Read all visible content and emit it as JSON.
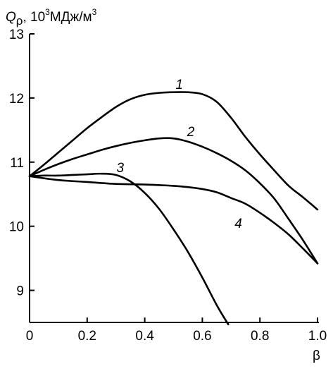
{
  "chart_data": {
    "type": "line",
    "ylabel_main": "Q",
    "ylabel_sub": "ρ",
    "ylabel_rest": ", 10",
    "ylabel_exp": "3",
    "ylabel_unit": "МДж/м",
    "ylabel_unit_exp": "3",
    "xlabel": "β",
    "xlim": [
      0,
      1.0
    ],
    "ylim": [
      8.5,
      13
    ],
    "x_ticks": [
      "0",
      "0.2",
      "0.4",
      "0.6",
      "0.8",
      "1.0"
    ],
    "x_tick_values": [
      0,
      0.2,
      0.4,
      0.6,
      0.8,
      1.0
    ],
    "y_ticks": [
      "9",
      "10",
      "11",
      "12",
      "13"
    ],
    "y_tick_values": [
      9,
      10,
      11,
      12,
      13
    ],
    "series": [
      {
        "name": "1",
        "label_at": [
          0.52,
          12.22
        ],
        "x": [
          0,
          0.05,
          0.1,
          0.15,
          0.2,
          0.25,
          0.3,
          0.35,
          0.4,
          0.45,
          0.5,
          0.55,
          0.6,
          0.65,
          0.7,
          0.75,
          0.8,
          0.85,
          0.9,
          0.95,
          1.0
        ],
        "y": [
          10.78,
          10.96,
          11.15,
          11.34,
          11.53,
          11.7,
          11.86,
          11.98,
          12.05,
          12.08,
          12.09,
          12.09,
          12.06,
          11.94,
          11.69,
          11.39,
          11.12,
          10.87,
          10.63,
          10.45,
          10.26
        ]
      },
      {
        "name": "2",
        "label_at": [
          0.56,
          11.48
        ],
        "x": [
          0,
          0.05,
          0.1,
          0.15,
          0.2,
          0.25,
          0.3,
          0.35,
          0.4,
          0.45,
          0.5,
          0.55,
          0.6,
          0.65,
          0.7,
          0.75,
          0.8,
          0.85,
          0.9,
          0.95,
          1.0
        ],
        "y": [
          10.78,
          10.88,
          10.97,
          11.05,
          11.12,
          11.19,
          11.25,
          11.3,
          11.34,
          11.37,
          11.37,
          11.32,
          11.24,
          11.14,
          11.02,
          10.87,
          10.67,
          10.43,
          10.11,
          9.78,
          9.42
        ]
      },
      {
        "name": "3",
        "label_at": [
          0.315,
          10.92
        ],
        "x": [
          0,
          0.05,
          0.1,
          0.15,
          0.2,
          0.25,
          0.3,
          0.35,
          0.4,
          0.45,
          0.5,
          0.55,
          0.6,
          0.65,
          0.69
        ],
        "y": [
          10.78,
          10.79,
          10.79,
          10.8,
          10.81,
          10.82,
          10.8,
          10.7,
          10.52,
          10.27,
          9.95,
          9.6,
          9.2,
          8.77,
          8.47
        ]
      },
      {
        "name": "4",
        "label_at": [
          0.725,
          10.05
        ],
        "x": [
          0,
          0.1,
          0.2,
          0.3,
          0.4,
          0.5,
          0.55,
          0.6,
          0.65,
          0.7,
          0.75,
          0.8,
          0.85,
          0.9,
          0.95,
          1.0
        ],
        "y": [
          10.78,
          10.72,
          10.69,
          10.66,
          10.65,
          10.63,
          10.61,
          10.58,
          10.53,
          10.44,
          10.35,
          10.21,
          10.05,
          9.87,
          9.65,
          9.42
        ]
      }
    ]
  }
}
